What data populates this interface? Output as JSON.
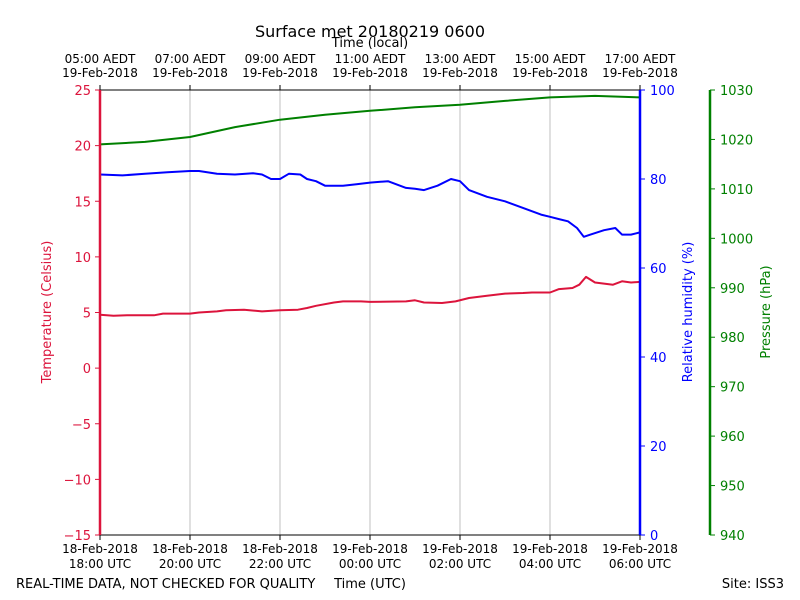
{
  "chart_data": {
    "type": "line",
    "title": "Surface met 20180219 0600",
    "top_axis_label": "Time (local)",
    "xlabel": "Time (UTC)",
    "footer_left": "REAL-TIME DATA, NOT CHECKED FOR QUALITY",
    "footer_right": "Site: ISS3",
    "x_utc_ticks": [
      {
        "hour": 0,
        "line1": "18-Feb-2018",
        "line2": "18:00 UTC"
      },
      {
        "hour": 2,
        "line1": "18-Feb-2018",
        "line2": "20:00 UTC"
      },
      {
        "hour": 4,
        "line1": "18-Feb-2018",
        "line2": "22:00 UTC"
      },
      {
        "hour": 6,
        "line1": "19-Feb-2018",
        "line2": "00:00 UTC"
      },
      {
        "hour": 8,
        "line1": "19-Feb-2018",
        "line2": "02:00 UTC"
      },
      {
        "hour": 10,
        "line1": "19-Feb-2018",
        "line2": "04:00 UTC"
      },
      {
        "hour": 12,
        "line1": "19-Feb-2018",
        "line2": "06:00 UTC"
      }
    ],
    "x_local_ticks": [
      {
        "hour": 0,
        "line1": "05:00 AEDT",
        "line2": "19-Feb-2018"
      },
      {
        "hour": 2,
        "line1": "07:00 AEDT",
        "line2": "19-Feb-2018"
      },
      {
        "hour": 4,
        "line1": "09:00 AEDT",
        "line2": "19-Feb-2018"
      },
      {
        "hour": 6,
        "line1": "11:00 AEDT",
        "line2": "19-Feb-2018"
      },
      {
        "hour": 8,
        "line1": "13:00 AEDT",
        "line2": "19-Feb-2018"
      },
      {
        "hour": 10,
        "line1": "15:00 AEDT",
        "line2": "19-Feb-2018"
      },
      {
        "hour": 12,
        "line1": "17:00 AEDT",
        "line2": "19-Feb-2018"
      }
    ],
    "xlim": [
      0,
      12
    ],
    "grid_x": true,
    "axes": {
      "temperature": {
        "label": "Temperature (Celsius)",
        "color": "#dc143c",
        "ylim": [
          -15,
          25
        ],
        "ticks": [
          -15,
          -10,
          -5,
          0,
          5,
          10,
          15,
          20,
          25
        ],
        "tick_labels": [
          "−15",
          "−10",
          "−5",
          "0",
          "5",
          "10",
          "15",
          "20",
          "25"
        ]
      },
      "humidity": {
        "label": "Relative humidity (%)",
        "color": "#0000ff",
        "ylim": [
          0,
          100
        ],
        "ticks": [
          0,
          20,
          40,
          60,
          80,
          100
        ],
        "tick_labels": [
          "0",
          "20",
          "40",
          "60",
          "80",
          "100"
        ]
      },
      "pressure": {
        "label": "Pressure (hPa)",
        "color": "#008000",
        "ylim": [
          940,
          1030
        ],
        "ticks": [
          940,
          950,
          960,
          970,
          980,
          990,
          1000,
          1010,
          1020,
          1030
        ],
        "tick_labels": [
          "940",
          "950",
          "960",
          "970",
          "980",
          "990",
          "1000",
          "1010",
          "1020",
          "1030"
        ]
      }
    },
    "series": [
      {
        "axis": "temperature",
        "color": "#dc143c",
        "points": [
          [
            0,
            4.8
          ],
          [
            0.3,
            4.7
          ],
          [
            0.6,
            4.75
          ],
          [
            1.0,
            4.75
          ],
          [
            1.2,
            4.75
          ],
          [
            1.4,
            4.9
          ],
          [
            2.0,
            4.9
          ],
          [
            2.2,
            5.0
          ],
          [
            2.6,
            5.1
          ],
          [
            2.8,
            5.2
          ],
          [
            3.2,
            5.25
          ],
          [
            3.6,
            5.1
          ],
          [
            4.0,
            5.2
          ],
          [
            4.4,
            5.25
          ],
          [
            4.6,
            5.4
          ],
          [
            4.8,
            5.6
          ],
          [
            5.2,
            5.9
          ],
          [
            5.4,
            6.0
          ],
          [
            5.8,
            6.0
          ],
          [
            6.0,
            5.95
          ],
          [
            6.8,
            6.0
          ],
          [
            7.0,
            6.1
          ],
          [
            7.2,
            5.9
          ],
          [
            7.6,
            5.85
          ],
          [
            7.9,
            6.0
          ],
          [
            8.2,
            6.3
          ],
          [
            8.6,
            6.5
          ],
          [
            9.0,
            6.7
          ],
          [
            9.4,
            6.75
          ],
          [
            9.6,
            6.8
          ],
          [
            10.0,
            6.8
          ],
          [
            10.2,
            7.1
          ],
          [
            10.5,
            7.2
          ],
          [
            10.65,
            7.5
          ],
          [
            10.8,
            8.2
          ],
          [
            11.0,
            7.7
          ],
          [
            11.2,
            7.6
          ],
          [
            11.4,
            7.5
          ],
          [
            11.6,
            7.8
          ],
          [
            11.8,
            7.7
          ],
          [
            12.0,
            7.75
          ]
        ]
      },
      {
        "axis": "humidity",
        "color": "#0000ff",
        "points": [
          [
            0,
            81.0
          ],
          [
            0.5,
            80.8
          ],
          [
            1.0,
            81.2
          ],
          [
            1.5,
            81.5
          ],
          [
            2.0,
            81.8
          ],
          [
            2.2,
            81.8
          ],
          [
            2.6,
            81.2
          ],
          [
            3.0,
            81.0
          ],
          [
            3.4,
            81.3
          ],
          [
            3.6,
            81.0
          ],
          [
            3.8,
            80.0
          ],
          [
            4.0,
            80.0
          ],
          [
            4.2,
            81.2
          ],
          [
            4.45,
            81.0
          ],
          [
            4.6,
            80.0
          ],
          [
            4.8,
            79.5
          ],
          [
            5.0,
            78.5
          ],
          [
            5.4,
            78.5
          ],
          [
            5.7,
            78.8
          ],
          [
            6.0,
            79.2
          ],
          [
            6.4,
            79.5
          ],
          [
            6.8,
            78.0
          ],
          [
            7.0,
            77.8
          ],
          [
            7.2,
            77.5
          ],
          [
            7.5,
            78.5
          ],
          [
            7.8,
            80.0
          ],
          [
            8.0,
            79.5
          ],
          [
            8.2,
            77.5
          ],
          [
            8.6,
            76.0
          ],
          [
            9.0,
            75.0
          ],
          [
            9.4,
            73.5
          ],
          [
            9.8,
            72.0
          ],
          [
            10.0,
            71.5
          ],
          [
            10.2,
            71.0
          ],
          [
            10.4,
            70.5
          ],
          [
            10.6,
            69.0
          ],
          [
            10.75,
            67.0
          ],
          [
            10.9,
            67.5
          ],
          [
            11.2,
            68.5
          ],
          [
            11.45,
            69.0
          ],
          [
            11.6,
            67.5
          ],
          [
            11.8,
            67.5
          ],
          [
            12.0,
            68.0
          ]
        ]
      },
      {
        "axis": "pressure",
        "color": "#008000",
        "points": [
          [
            0,
            1019.0
          ],
          [
            1,
            1019.5
          ],
          [
            2,
            1020.5
          ],
          [
            3,
            1022.5
          ],
          [
            4,
            1024.0
          ],
          [
            5,
            1025.0
          ],
          [
            6,
            1025.8
          ],
          [
            7,
            1026.5
          ],
          [
            8,
            1027.0
          ],
          [
            9,
            1027.8
          ],
          [
            10,
            1028.5
          ],
          [
            11,
            1028.8
          ],
          [
            12,
            1028.5
          ]
        ]
      }
    ]
  }
}
